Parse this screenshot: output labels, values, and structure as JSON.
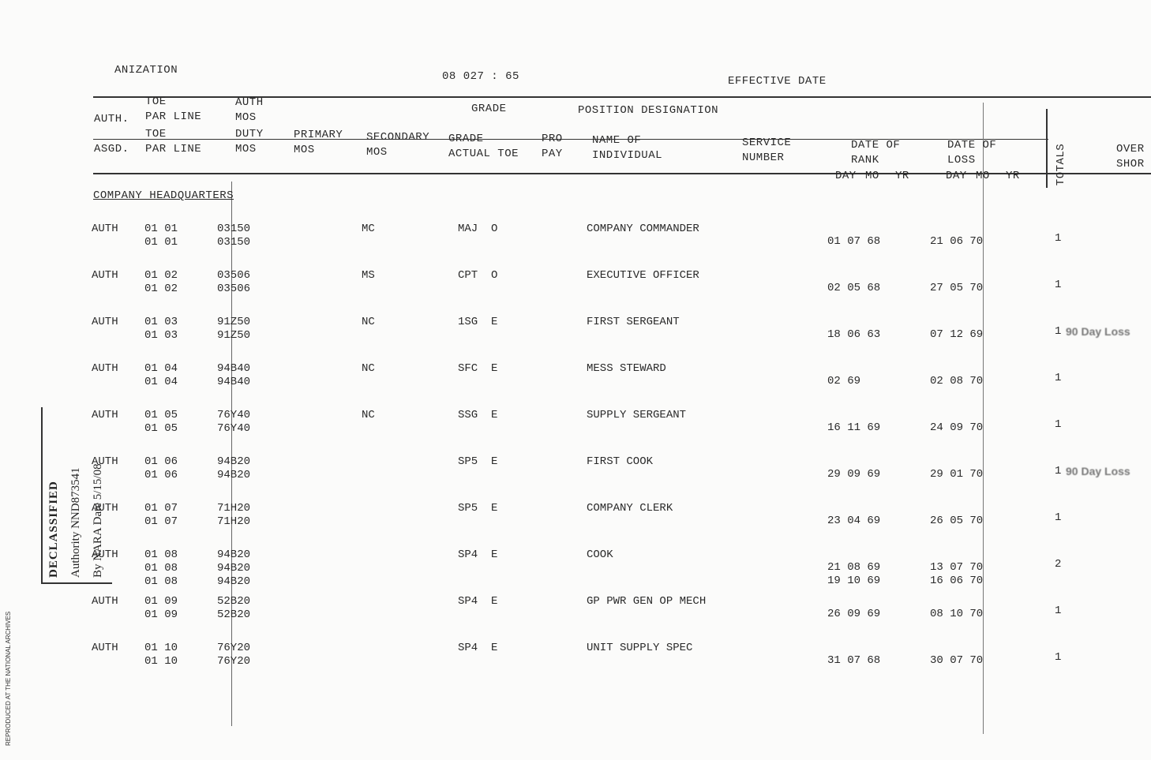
{
  "margin_note": "REPRODUCED AT THE NATIONAL ARCHIVES",
  "header": {
    "organization": "ANIZATION",
    "code": "08 027 : 65",
    "effective_date": "EFFECTIVE DATE"
  },
  "columns": {
    "auth": [
      "AUTH."
    ],
    "toe_par_line_auth": [
      "TOE",
      "PAR LINE"
    ],
    "auth_mos": [
      "AUTH",
      "MOS"
    ],
    "grade": [
      "GRADE"
    ],
    "position_designation": [
      "POSITION DESIGNATION"
    ],
    "asgd": [
      "ASGD."
    ],
    "toe_par_line_asgd": [
      "TOE",
      "PAR LINE"
    ],
    "duty_mos": [
      "DUTY",
      "MOS"
    ],
    "primary_mos": [
      "PRIMARY",
      "MOS"
    ],
    "secondary_mos": [
      "SECONDARY",
      "MOS"
    ],
    "grade_actual_toe": [
      "GRADE",
      "ACTUAL TOE"
    ],
    "pro_pay": [
      "PRO",
      "PAY"
    ],
    "name": [
      "NAME OF",
      "INDIVIDUAL"
    ],
    "service_number": [
      "SERVICE",
      "NUMBER"
    ],
    "date_of_rank": [
      "DATE OF",
      "RANK"
    ],
    "date_of_loss": [
      "DATE OF",
      "LOSS"
    ],
    "rank_parts": [
      "DAY",
      "MO",
      "YR"
    ],
    "loss_parts": [
      "DAY",
      "MO",
      "YR"
    ],
    "totals": [
      "TOTALS"
    ],
    "over_short": [
      "OVER",
      "SHOR"
    ]
  },
  "section": "COMPANY HEADQUARTERS",
  "rows": [
    {
      "auth": "AUTH",
      "par": [
        "01 01",
        "01 01"
      ],
      "mos": [
        "03150",
        "03150"
      ],
      "primary": "MC",
      "grade": "MAJ  O",
      "position": "COMPANY COMMANDER",
      "rank": [
        "01 07 68"
      ],
      "loss": [
        "21 06 70"
      ],
      "total": "1"
    },
    {
      "auth": "AUTH",
      "par": [
        "01 02",
        "01 02"
      ],
      "mos": [
        "03506",
        "03506"
      ],
      "primary": "MS",
      "grade": "CPT  O",
      "position": "EXECUTIVE OFFICER",
      "rank": [
        "02 05 68"
      ],
      "loss": [
        "27 05 70"
      ],
      "total": "1"
    },
    {
      "auth": "AUTH",
      "par": [
        "01 03",
        "01 03"
      ],
      "mos": [
        "91Z50",
        "91Z50"
      ],
      "primary": "NC",
      "grade": "1SG  E",
      "position": "FIRST SERGEANT",
      "rank": [
        "18 06 63"
      ],
      "loss": [
        "07 12 69"
      ],
      "total": "1",
      "note": "90 Day Loss"
    },
    {
      "auth": "AUTH",
      "par": [
        "01 04",
        "01 04"
      ],
      "mos": [
        "94B40",
        "94B40"
      ],
      "primary": "NC",
      "grade": "SFC  E",
      "position": "MESS STEWARD",
      "rank": [
        "02 69"
      ],
      "loss": [
        "02 08 70"
      ],
      "total": "1"
    },
    {
      "auth": "AUTH",
      "par": [
        "01 05",
        "01 05"
      ],
      "mos": [
        "76Y40",
        "76Y40"
      ],
      "primary": "NC",
      "grade": "SSG  E",
      "position": "SUPPLY SERGEANT",
      "rank": [
        "16 11 69"
      ],
      "loss": [
        "24 09 70"
      ],
      "total": "1"
    },
    {
      "auth": "AUTH",
      "par": [
        "01 06",
        "01 06"
      ],
      "mos": [
        "94B20",
        "94B20"
      ],
      "grade": "SP5  E",
      "position": "FIRST COOK",
      "rank": [
        "29 09 69"
      ],
      "loss": [
        "29 01 70"
      ],
      "total": "1",
      "note": "90 Day Loss"
    },
    {
      "auth": "AUTH",
      "par": [
        "01 07",
        "01 07"
      ],
      "mos": [
        "71H20",
        "71H20"
      ],
      "grade": "SP5  E",
      "position": "COMPANY CLERK",
      "rank": [
        "23 04 69"
      ],
      "loss": [
        "26 05 70"
      ],
      "total": "1"
    },
    {
      "auth": "AUTH",
      "par": [
        "01 08",
        "01 08",
        "01 08"
      ],
      "mos": [
        "94B20",
        "94B20",
        "94B20"
      ],
      "grade": "SP4  E",
      "position": "COOK",
      "rank": [
        "21 08 69",
        "19 10 69"
      ],
      "loss": [
        "13 07 70",
        "16 06 70"
      ],
      "total": "2"
    },
    {
      "auth": "AUTH",
      "par": [
        "01 09",
        "01 09"
      ],
      "mos": [
        "52B20",
        "52B20"
      ],
      "grade": "SP4  E",
      "position": "GP PWR GEN OP MECH",
      "rank": [
        "26 09 69"
      ],
      "loss": [
        "08 10 70"
      ],
      "total": "1"
    },
    {
      "auth": "AUTH",
      "par": [
        "01 10",
        "01 10"
      ],
      "mos": [
        "76Y20",
        "76Y20"
      ],
      "grade": "SP4  E",
      "position": "UNIT SUPPLY SPEC",
      "rank": [
        "31 07 68"
      ],
      "loss": [
        "30 07 70"
      ],
      "total": "1"
    }
  ],
  "stamp": {
    "title": "DECLASSIFIED",
    "authority": "Authority NND873541",
    "by": "By NARA Date 5/15/08"
  }
}
